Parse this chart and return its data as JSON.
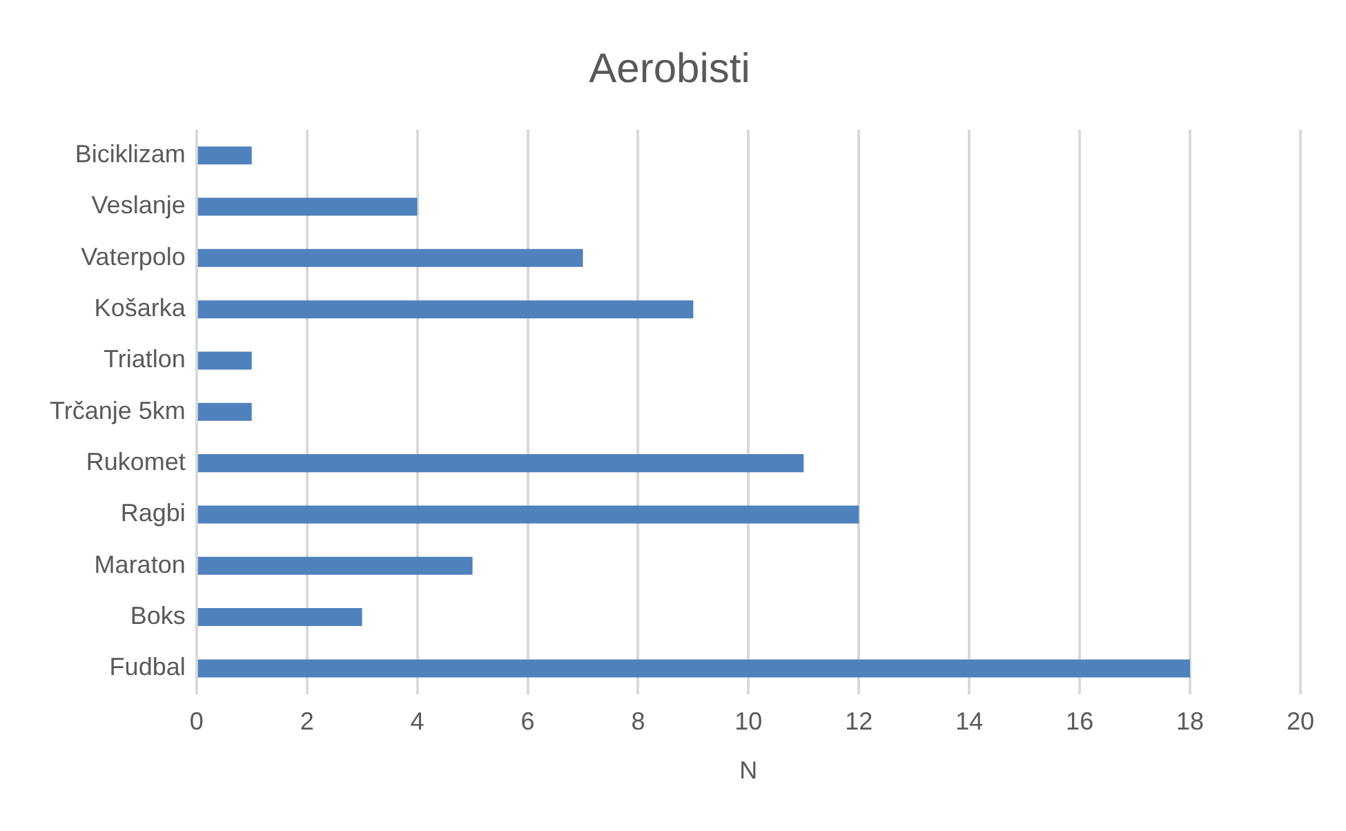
{
  "chart_data": {
    "type": "bar",
    "orientation": "horizontal",
    "title": "Aerobisti",
    "xlabel": "N",
    "categories": [
      "Biciklizam",
      "Veslanje",
      "Vaterpolo",
      "Košarka",
      "Triatlon",
      "Trčanje 5km",
      "Rukomet",
      "Ragbi",
      "Maraton",
      "Boks",
      "Fudbal"
    ],
    "values": [
      1,
      4,
      7,
      9,
      1,
      1,
      11,
      12,
      5,
      3,
      18
    ],
    "color": "#4f81bd",
    "xlim": [
      0,
      20
    ],
    "xticks": [
      0,
      2,
      4,
      6,
      8,
      10,
      12,
      14,
      16,
      18,
      20
    ],
    "grid": "x",
    "legend": false
  }
}
